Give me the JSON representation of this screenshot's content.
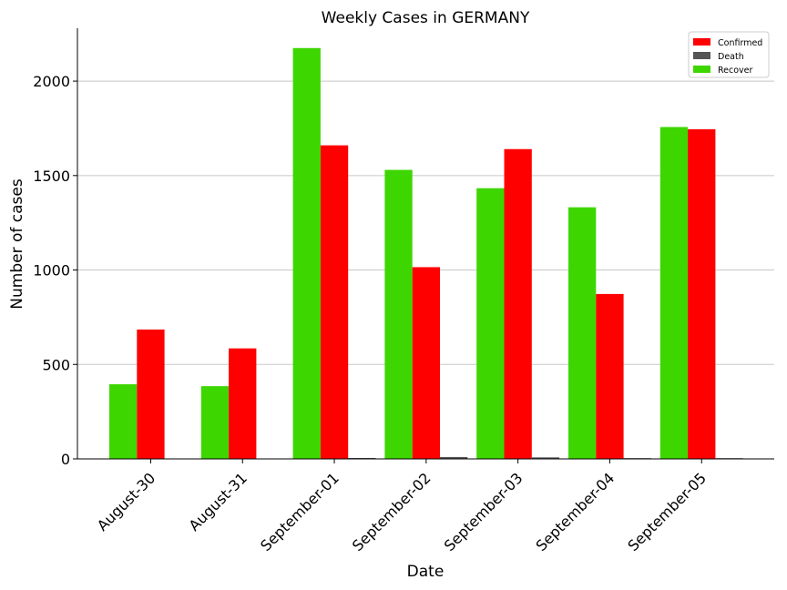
{
  "chart_data": {
    "type": "bar",
    "title": "Weekly Cases in GERMANY",
    "xlabel": "Date",
    "ylabel": "Number of cases",
    "categories": [
      "August-30",
      "August-31",
      "September-01",
      "September-02",
      "September-03",
      "September-04",
      "September-05"
    ],
    "series": [
      {
        "name": "Recover",
        "color": "#3ed600",
        "values": [
          395,
          385,
          2175,
          1530,
          1433,
          1332,
          1757
        ]
      },
      {
        "name": "Confirmed",
        "color": "#ff0000",
        "values": [
          685,
          585,
          1660,
          1015,
          1640,
          873,
          1745
        ]
      },
      {
        "name": "Death",
        "color": "#555555",
        "values": [
          0,
          0,
          5,
          10,
          8,
          4,
          1
        ]
      }
    ],
    "legend_order": [
      "Confirmed",
      "Death",
      "Recover"
    ],
    "legend_position": "top-right",
    "ylim": [
      0,
      2280
    ],
    "yticks": [
      0,
      500,
      1000,
      1500,
      2000
    ],
    "grid": "horizontal"
  }
}
